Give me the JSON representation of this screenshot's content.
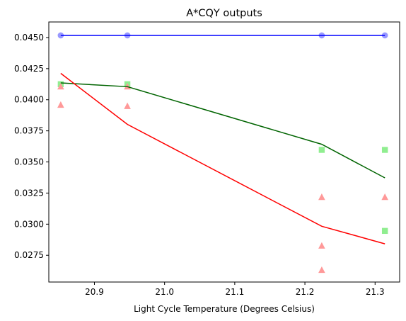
{
  "chart_data": {
    "type": "scatter",
    "title": "A*CQY outputs",
    "xlabel": "Light Cycle Temperature (Degrees Celsius)",
    "ylabel": "",
    "xlim": [
      20.835,
      21.335
    ],
    "ylim": [
      0.02535,
      0.04625
    ],
    "xticks": [
      20.9,
      21.0,
      21.1,
      21.2,
      21.3
    ],
    "xtick_labels": [
      "20.9",
      "21.0",
      "21.1",
      "21.2",
      "21.3"
    ],
    "yticks": [
      0.0275,
      0.03,
      0.0325,
      0.035,
      0.0375,
      0.04,
      0.0425,
      0.045
    ],
    "ytick_labels": [
      "0.0275",
      "0.0300",
      "0.0325",
      "0.0350",
      "0.0375",
      "0.0400",
      "0.0425",
      "0.0450"
    ],
    "grid": false,
    "series": [
      {
        "kind": "points",
        "marker": "circle",
        "color": "#9999ff",
        "x": [
          20.852,
          20.947,
          21.224,
          21.314
        ],
        "y": [
          0.04517,
          0.04517,
          0.04517,
          0.04517
        ]
      },
      {
        "kind": "points",
        "marker": "square",
        "color": "#90ee90",
        "x": [
          20.852,
          20.947,
          21.224,
          21.314,
          21.314
        ],
        "y": [
          0.04125,
          0.04125,
          0.03597,
          0.03597,
          0.02946
        ]
      },
      {
        "kind": "points",
        "marker": "triangle",
        "color": "#ff9999",
        "x": [
          20.852,
          20.852,
          20.947,
          20.947,
          21.224,
          21.224,
          21.224,
          21.314
        ],
        "y": [
          0.04105,
          0.03958,
          0.04105,
          0.03948,
          0.03217,
          0.02826,
          0.02631,
          0.03217
        ]
      },
      {
        "kind": "line",
        "color": "#0000ff",
        "x": [
          20.852,
          20.947,
          21.224,
          21.314
        ],
        "y": [
          0.04517,
          0.04517,
          0.04517,
          0.04517
        ]
      },
      {
        "kind": "line",
        "color": "#006400",
        "x": [
          20.852,
          20.947,
          21.224,
          21.314
        ],
        "y": [
          0.04135,
          0.04105,
          0.03642,
          0.03372
        ]
      },
      {
        "kind": "line",
        "color": "#ff0000",
        "x": [
          20.852,
          20.947,
          21.224,
          21.314
        ],
        "y": [
          0.04212,
          0.03802,
          0.02983,
          0.02842
        ]
      }
    ]
  }
}
